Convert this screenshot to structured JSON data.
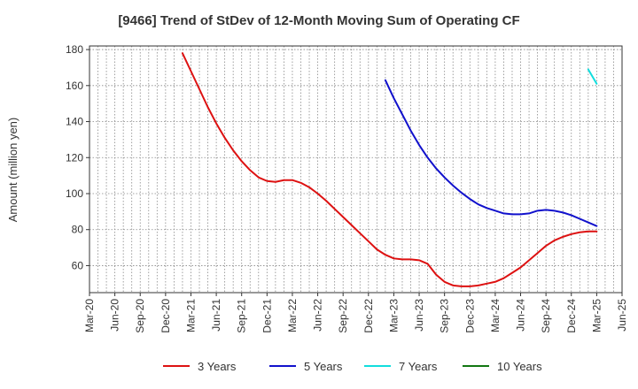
{
  "title": "[9466]  Trend of StDev of 12-Month Moving Sum of Operating CF",
  "chart_data": {
    "type": "line",
    "title": "[9466]  Trend of StDev of 12-Month Moving Sum of Operating CF",
    "xlabel": "",
    "ylabel": "Amount (million yen)",
    "x_ticks": [
      "Mar-20",
      "Jun-20",
      "Sep-20",
      "Dec-20",
      "Mar-21",
      "Jun-21",
      "Sep-21",
      "Dec-21",
      "Mar-22",
      "Jun-22",
      "Sep-22",
      "Dec-22",
      "Mar-23",
      "Jun-23",
      "Sep-23",
      "Dec-23",
      "Mar-24",
      "Jun-24",
      "Sep-24",
      "Dec-24",
      "Mar-25",
      "Jun-25"
    ],
    "y_ticks": [
      60,
      80,
      100,
      120,
      140,
      160,
      180
    ],
    "ylim": [
      45,
      182
    ],
    "grid": true,
    "legend_position": "bottom",
    "series": [
      {
        "name": "3 Years",
        "color": "#dd1111",
        "x": [
          "2021-02",
          "2021-03",
          "2021-04",
          "2021-05",
          "2021-06",
          "2021-07",
          "2021-08",
          "2021-09",
          "2021-10",
          "2021-11",
          "2021-12",
          "2022-01",
          "2022-02",
          "2022-03",
          "2022-04",
          "2022-05",
          "2022-06",
          "2022-07",
          "2022-08",
          "2022-09",
          "2022-10",
          "2022-11",
          "2022-12",
          "2023-01",
          "2023-02",
          "2023-03",
          "2023-04",
          "2023-05",
          "2023-06",
          "2023-07",
          "2023-08",
          "2023-09",
          "2023-10",
          "2023-11",
          "2023-12",
          "2024-01",
          "2024-02",
          "2024-03",
          "2024-04",
          "2024-05",
          "2024-06",
          "2024-07",
          "2024-08",
          "2024-09",
          "2024-10",
          "2024-11",
          "2024-12",
          "2025-01",
          "2025-02",
          "2025-03"
        ],
        "values": [
          178,
          168,
          158,
          148,
          139,
          131,
          124,
          118,
          113,
          109,
          107,
          106.5,
          107.5,
          107.5,
          106,
          103.5,
          100,
          96,
          91.5,
          87,
          82.5,
          78,
          73.5,
          69,
          66,
          64,
          63.5,
          63.5,
          63,
          61,
          55,
          51,
          49,
          48.5,
          48.5,
          49,
          50,
          51,
          53,
          56,
          59,
          63,
          67,
          71,
          74,
          76,
          77.5,
          78.5,
          79,
          79
        ]
      },
      {
        "name": "5 Years",
        "color": "#1111cc",
        "x": [
          "2023-02",
          "2023-03",
          "2023-04",
          "2023-05",
          "2023-06",
          "2023-07",
          "2023-08",
          "2023-09",
          "2023-10",
          "2023-11",
          "2023-12",
          "2024-01",
          "2024-02",
          "2024-03",
          "2024-04",
          "2024-05",
          "2024-06",
          "2024-07",
          "2024-08",
          "2024-09",
          "2024-10",
          "2024-11",
          "2024-12",
          "2025-01",
          "2025-02",
          "2025-03"
        ],
        "values": [
          163,
          153,
          144,
          135,
          127,
          120,
          114,
          109,
          104.5,
          100.5,
          97,
          94,
          92,
          90.5,
          89,
          88.5,
          88.5,
          89,
          90.5,
          91,
          90.5,
          89.5,
          88,
          86,
          84,
          82
        ]
      },
      {
        "name": "7 Years",
        "color": "#11dddd",
        "x": [
          "2025-02",
          "2025-03"
        ],
        "values": [
          169,
          161
        ]
      },
      {
        "name": "10 Years",
        "color": "#117711",
        "x": [],
        "values": []
      }
    ]
  }
}
